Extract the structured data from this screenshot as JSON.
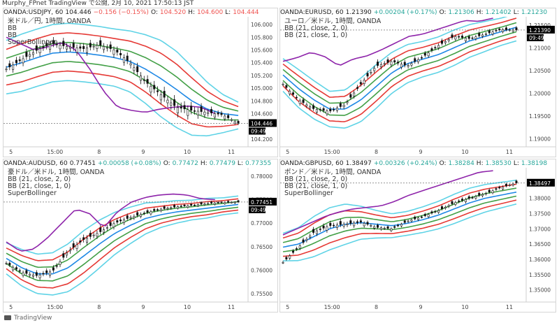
{
  "window_title": "Murphy_FPnet TradingView で公開, 2月 10, 2021 17:50:13 JST",
  "footer_brand": "TradingView",
  "colors": {
    "bb_outer": "#5fd3e6",
    "bb_upper2": "#e53935",
    "bb_upper1": "#43a047",
    "bb_mid": "#1e88e5",
    "super": "#8e24aa",
    "candle": "#111111",
    "price_badge": "#000000"
  },
  "chart_data": [
    {
      "type": "candlestick",
      "symbol": "OANDA:USDJPY, 60",
      "close": "104.446",
      "change": "−0.156 (−0.15%)",
      "change_dir": "down",
      "ohlc_labels": {
        "o": "O:",
        "h": "H:",
        "l": "L:"
      },
      "o": "104.520",
      "h": "104.600",
      "l": "104.444",
      "legend": [
        "米ドル／円, 1時間, OANDA",
        "BB",
        "BB",
        "SuperBollinger"
      ],
      "yticks": [
        "106.000",
        "105.800",
        "105.600",
        "105.400",
        "105.200",
        "105.000",
        "104.800",
        "104.600",
        "104.200"
      ],
      "ylim": [
        104.1,
        106.1
      ],
      "xticks": [
        "5",
        "15:00",
        "8",
        "9",
        "10",
        "11"
      ],
      "price_badge": "104.446",
      "time_badge": "09:49",
      "mid": [
        105.33,
        105.4,
        105.48,
        105.55,
        105.57,
        105.55,
        105.52,
        105.48,
        105.42,
        105.3,
        105.15,
        104.98,
        104.8,
        104.67,
        104.6,
        104.57
      ],
      "s1": [
        0.14,
        0.15,
        0.15,
        0.15,
        0.15,
        0.15,
        0.15,
        0.15,
        0.16,
        0.18,
        0.2,
        0.2,
        0.18,
        0.14,
        0.1,
        0.07
      ],
      "s2": [
        0.28,
        0.3,
        0.3,
        0.3,
        0.3,
        0.3,
        0.3,
        0.3,
        0.32,
        0.36,
        0.4,
        0.4,
        0.36,
        0.28,
        0.2,
        0.14
      ],
      "s3": [
        0.42,
        0.45,
        0.45,
        0.45,
        0.45,
        0.45,
        0.45,
        0.45,
        0.48,
        0.54,
        0.6,
        0.6,
        0.54,
        0.42,
        0.3,
        0.21
      ],
      "closes": [
        105.3,
        105.45,
        105.6,
        105.7,
        105.65,
        105.62,
        105.68,
        105.6,
        105.4,
        105.1,
        104.9,
        104.7,
        104.65,
        104.62,
        104.58,
        104.446
      ],
      "super": [
        105.8,
        105.7,
        105.6,
        105.65,
        105.72,
        105.6,
        105.3,
        104.95,
        104.7,
        104.65,
        104.62,
        104.67,
        104.7,
        104.72,
        104.7,
        104.6
      ]
    },
    {
      "type": "candlestick",
      "symbol": "OANDA:EURUSD, 60",
      "close": "1.21390",
      "change": "+0.00204 (+0.17%)",
      "change_dir": "up",
      "ohlc_labels": {
        "o": "O:",
        "h": "H:",
        "l": "L:"
      },
      "o": "1.21306",
      "h": "1.21402",
      "l": "1.21230",
      "legend": [
        "ユーロ／米ドル, 1時間, OANDA",
        "BB (21, close, 2, 0)",
        "BB (21, close, 1, 0)"
      ],
      "yticks": [
        "1.21500",
        "1.21000",
        "1.20500",
        "1.20000",
        "1.19500",
        "1.19000"
      ],
      "ylim": [
        1.1885,
        1.2165
      ],
      "xticks": [
        "5",
        "15:00",
        "8",
        "9",
        "10",
        "11"
      ],
      "price_badge": "1.21390",
      "time_badge": "09:49",
      "mid": [
        1.204,
        1.201,
        1.1985,
        1.1965,
        1.1965,
        1.1985,
        1.2015,
        1.2045,
        1.2065,
        1.2075,
        1.2085,
        1.21,
        1.2115,
        1.2125,
        1.2135,
        1.2145
      ],
      "s1": [
        0.0012,
        0.0014,
        0.0014,
        0.0013,
        0.0014,
        0.0016,
        0.0016,
        0.0015,
        0.0014,
        0.0013,
        0.0013,
        0.0013,
        0.0012,
        0.0011,
        0.001,
        0.001
      ],
      "s2": [
        0.0024,
        0.0028,
        0.0028,
        0.0026,
        0.0028,
        0.0032,
        0.0032,
        0.003,
        0.0028,
        0.0026,
        0.0026,
        0.0026,
        0.0024,
        0.0022,
        0.002,
        0.002
      ],
      "s3": [
        0.0036,
        0.0042,
        0.0042,
        0.0039,
        0.0042,
        0.0048,
        0.0048,
        0.0045,
        0.0042,
        0.0039,
        0.0039,
        0.0039,
        0.0036,
        0.0033,
        0.003,
        0.003
      ],
      "closes": [
        1.202,
        1.1985,
        1.1965,
        1.196,
        1.1975,
        1.202,
        1.206,
        1.207,
        1.206,
        1.208,
        1.2105,
        1.2125,
        1.212,
        1.213,
        1.214,
        1.2139
      ],
      "super": [
        1.207,
        1.2078,
        1.209,
        1.208,
        1.206,
        1.2075,
        1.2082,
        1.2095,
        1.211,
        1.2125,
        1.213,
        1.214,
        1.215,
        1.216,
        1.2158,
        1.2165
      ]
    },
    {
      "type": "candlestick",
      "symbol": "OANDA:AUDUSD, 60",
      "close": "0.77451",
      "change": "+0.00058 (+0.08%)",
      "change_dir": "up",
      "ohlc_labels": {
        "o": "O:",
        "h": "H:",
        "l": "L:"
      },
      "o": "0.77472",
      "h": "0.77479",
      "l": "0.77355",
      "legend": [
        "豪ドル／米ドル, 1時間, OANDA",
        "BB (21, close, 2, 0)",
        "BB (21, close, 1, 0)",
        "SuperBollinger"
      ],
      "yticks": [
        "0.78000",
        "0.77500",
        "0.77000",
        "0.76500",
        "0.76000",
        "0.75500"
      ],
      "ylim": [
        0.7535,
        0.7815
      ],
      "xticks": [
        "5",
        "15:00",
        "8",
        "9",
        "10",
        "11"
      ],
      "price_badge": "0.77451",
      "time_badge": "09:49",
      "mid": [
        0.7625,
        0.7605,
        0.7592,
        0.7592,
        0.7605,
        0.763,
        0.7655,
        0.7678,
        0.7695,
        0.771,
        0.7718,
        0.7724,
        0.7728,
        0.7732,
        0.7736,
        0.774
      ],
      "s1": [
        0.0011,
        0.0013,
        0.0014,
        0.0015,
        0.0017,
        0.0018,
        0.0017,
        0.0015,
        0.0013,
        0.0011,
        0.0009,
        0.0008,
        0.0007,
        0.0007,
        0.0006,
        0.0006
      ],
      "s2": [
        0.0022,
        0.0026,
        0.0028,
        0.003,
        0.0034,
        0.0036,
        0.0034,
        0.003,
        0.0026,
        0.0022,
        0.0018,
        0.0016,
        0.0014,
        0.0014,
        0.0012,
        0.0012
      ],
      "s3": [
        0.0033,
        0.0039,
        0.0042,
        0.0045,
        0.0051,
        0.0054,
        0.0051,
        0.0045,
        0.0039,
        0.0033,
        0.0027,
        0.0024,
        0.0021,
        0.0021,
        0.0018,
        0.0018
      ],
      "closes": [
        0.7615,
        0.7595,
        0.7588,
        0.7598,
        0.764,
        0.7665,
        0.768,
        0.77,
        0.7712,
        0.7722,
        0.773,
        0.7735,
        0.7738,
        0.7742,
        0.7744,
        0.7745
      ],
      "super": [
        0.766,
        0.764,
        0.7645,
        0.767,
        0.77,
        0.773,
        0.772,
        0.769,
        0.7725,
        0.7745,
        0.7755,
        0.776,
        0.7762,
        0.776,
        0.7752,
        0.775
      ]
    },
    {
      "type": "candlestick",
      "symbol": "OANDA:GBPUSD, 60",
      "close": "1.38497",
      "change": "+0.00326 (+0.24%)",
      "change_dir": "up",
      "ohlc_labels": {
        "o": "O:",
        "h": "H:",
        "l": "L:"
      },
      "o": "1.38284",
      "h": "1.38530",
      "l": "1.38198",
      "legend": [
        "ポンド／米ドル, 1時間, OANDA",
        "BB (21, close, 2, 0)",
        "BB (21, close, 1, 0)",
        "SuperBollinger"
      ],
      "yticks": [
        "1.38000",
        "1.37500",
        "1.37000",
        "1.36500",
        "1.36000",
        "1.35500",
        "1.35000"
      ],
      "ylim": [
        1.3465,
        1.3895
      ],
      "xticks": [
        "5",
        "15:00",
        "8",
        "9",
        "10",
        "11"
      ],
      "price_badge": "1.38497",
      "time_badge": "",
      "mid": [
        1.364,
        1.365,
        1.3675,
        1.37,
        1.3715,
        1.372,
        1.3715,
        1.371,
        1.3718,
        1.373,
        1.3745,
        1.3765,
        1.3785,
        1.38,
        1.381,
        1.382
      ],
      "s1": [
        0.0015,
        0.0018,
        0.0022,
        0.0023,
        0.0022,
        0.0018,
        0.0015,
        0.0013,
        0.0013,
        0.0014,
        0.0015,
        0.0016,
        0.0016,
        0.0015,
        0.0014,
        0.0013
      ],
      "s2": [
        0.003,
        0.0036,
        0.0044,
        0.0046,
        0.0044,
        0.0036,
        0.003,
        0.0026,
        0.0026,
        0.0028,
        0.003,
        0.0032,
        0.0032,
        0.003,
        0.0028,
        0.0026
      ],
      "s3": [
        0.0045,
        0.0054,
        0.0066,
        0.0069,
        0.0066,
        0.0054,
        0.0045,
        0.0039,
        0.0039,
        0.0042,
        0.0045,
        0.0048,
        0.0048,
        0.0045,
        0.0042,
        0.0039
      ],
      "closes": [
        1.359,
        1.364,
        1.369,
        1.371,
        1.3715,
        1.3722,
        1.3705,
        1.37,
        1.3725,
        1.374,
        1.376,
        1.3785,
        1.38,
        1.3815,
        1.3835,
        1.385
      ],
      "super": [
        1.368,
        1.37,
        1.372,
        1.374,
        1.3755,
        1.3765,
        1.377,
        1.3775,
        1.379,
        1.381,
        1.3825,
        1.384,
        1.3855,
        1.387,
        1.3885,
        1.389
      ]
    }
  ]
}
